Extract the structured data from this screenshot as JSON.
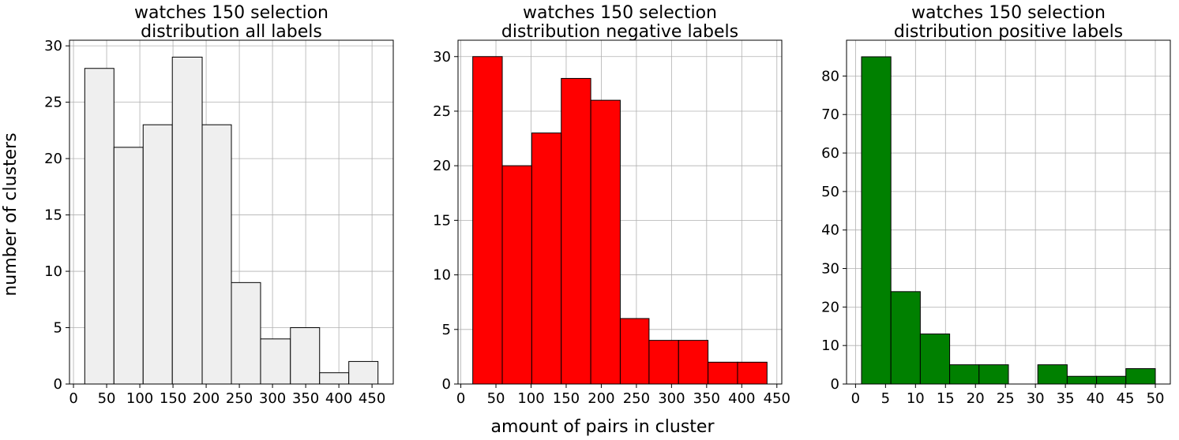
{
  "figure": {
    "ylabel": "number of clusters",
    "xlabel": "amount of pairs in cluster"
  },
  "chart_data": [
    {
      "type": "bar",
      "title": [
        "watches 150 selection",
        "distribution all labels"
      ],
      "color": "#efefef",
      "edge_color": "#000000",
      "bins": [
        {
          "x0": 17,
          "x1": 61,
          "value": 28
        },
        {
          "x0": 61,
          "x1": 105,
          "value": 21
        },
        {
          "x0": 105,
          "x1": 149,
          "value": 23
        },
        {
          "x0": 149,
          "x1": 194,
          "value": 29
        },
        {
          "x0": 194,
          "x1": 238,
          "value": 23
        },
        {
          "x0": 238,
          "x1": 282,
          "value": 9
        },
        {
          "x0": 282,
          "x1": 327,
          "value": 4
        },
        {
          "x0": 327,
          "x1": 371,
          "value": 5
        },
        {
          "x0": 371,
          "x1": 415,
          "value": 1
        },
        {
          "x0": 415,
          "x1": 459,
          "value": 2
        }
      ],
      "xlim": [
        -6,
        482
      ],
      "ylim": [
        0,
        30.5
      ],
      "xticks": [
        0,
        50,
        100,
        150,
        200,
        250,
        300,
        350,
        400,
        450
      ],
      "yticks": [
        0,
        5,
        10,
        15,
        20,
        25,
        30
      ],
      "grid": true
    },
    {
      "type": "bar",
      "title": [
        "watches 150 selection",
        "distribution negative labels"
      ],
      "color": "#ff0000",
      "edge_color": "#000000",
      "bins": [
        {
          "x0": 17,
          "x1": 59,
          "value": 30
        },
        {
          "x0": 59,
          "x1": 101,
          "value": 20
        },
        {
          "x0": 101,
          "x1": 143,
          "value": 23
        },
        {
          "x0": 143,
          "x1": 185,
          "value": 28
        },
        {
          "x0": 185,
          "x1": 227,
          "value": 26
        },
        {
          "x0": 227,
          "x1": 268,
          "value": 6
        },
        {
          "x0": 268,
          "x1": 310,
          "value": 4
        },
        {
          "x0": 310,
          "x1": 352,
          "value": 4
        },
        {
          "x0": 352,
          "x1": 394,
          "value": 2
        },
        {
          "x0": 394,
          "x1": 436,
          "value": 2
        }
      ],
      "xlim": [
        -4,
        457
      ],
      "ylim": [
        0,
        31.5
      ],
      "xticks": [
        0,
        50,
        100,
        150,
        200,
        250,
        300,
        350,
        400,
        450
      ],
      "yticks": [
        0,
        5,
        10,
        15,
        20,
        25,
        30
      ],
      "grid": true
    },
    {
      "type": "bar",
      "title": [
        "watches 150 selection",
        "distribution positive labels"
      ],
      "color": "#008000",
      "edge_color": "#000000",
      "bins": [
        {
          "x0": 1,
          "x1": 5.9,
          "value": 85
        },
        {
          "x0": 5.9,
          "x1": 10.8,
          "value": 24
        },
        {
          "x0": 10.8,
          "x1": 15.7,
          "value": 13
        },
        {
          "x0": 15.7,
          "x1": 20.6,
          "value": 5
        },
        {
          "x0": 20.6,
          "x1": 25.5,
          "value": 5
        },
        {
          "x0": 25.5,
          "x1": 30.4,
          "value": 0
        },
        {
          "x0": 30.4,
          "x1": 35.3,
          "value": 5
        },
        {
          "x0": 35.3,
          "x1": 40.2,
          "value": 2
        },
        {
          "x0": 40.2,
          "x1": 45.1,
          "value": 2
        },
        {
          "x0": 45.1,
          "x1": 50,
          "value": 4
        }
      ],
      "xlim": [
        -1.5,
        52.5
      ],
      "ylim": [
        0,
        89.3
      ],
      "xticks": [
        0,
        5,
        10,
        15,
        20,
        25,
        30,
        35,
        40,
        45,
        50
      ],
      "yticks": [
        0,
        10,
        20,
        30,
        40,
        50,
        60,
        70,
        80
      ],
      "grid": true
    }
  ]
}
